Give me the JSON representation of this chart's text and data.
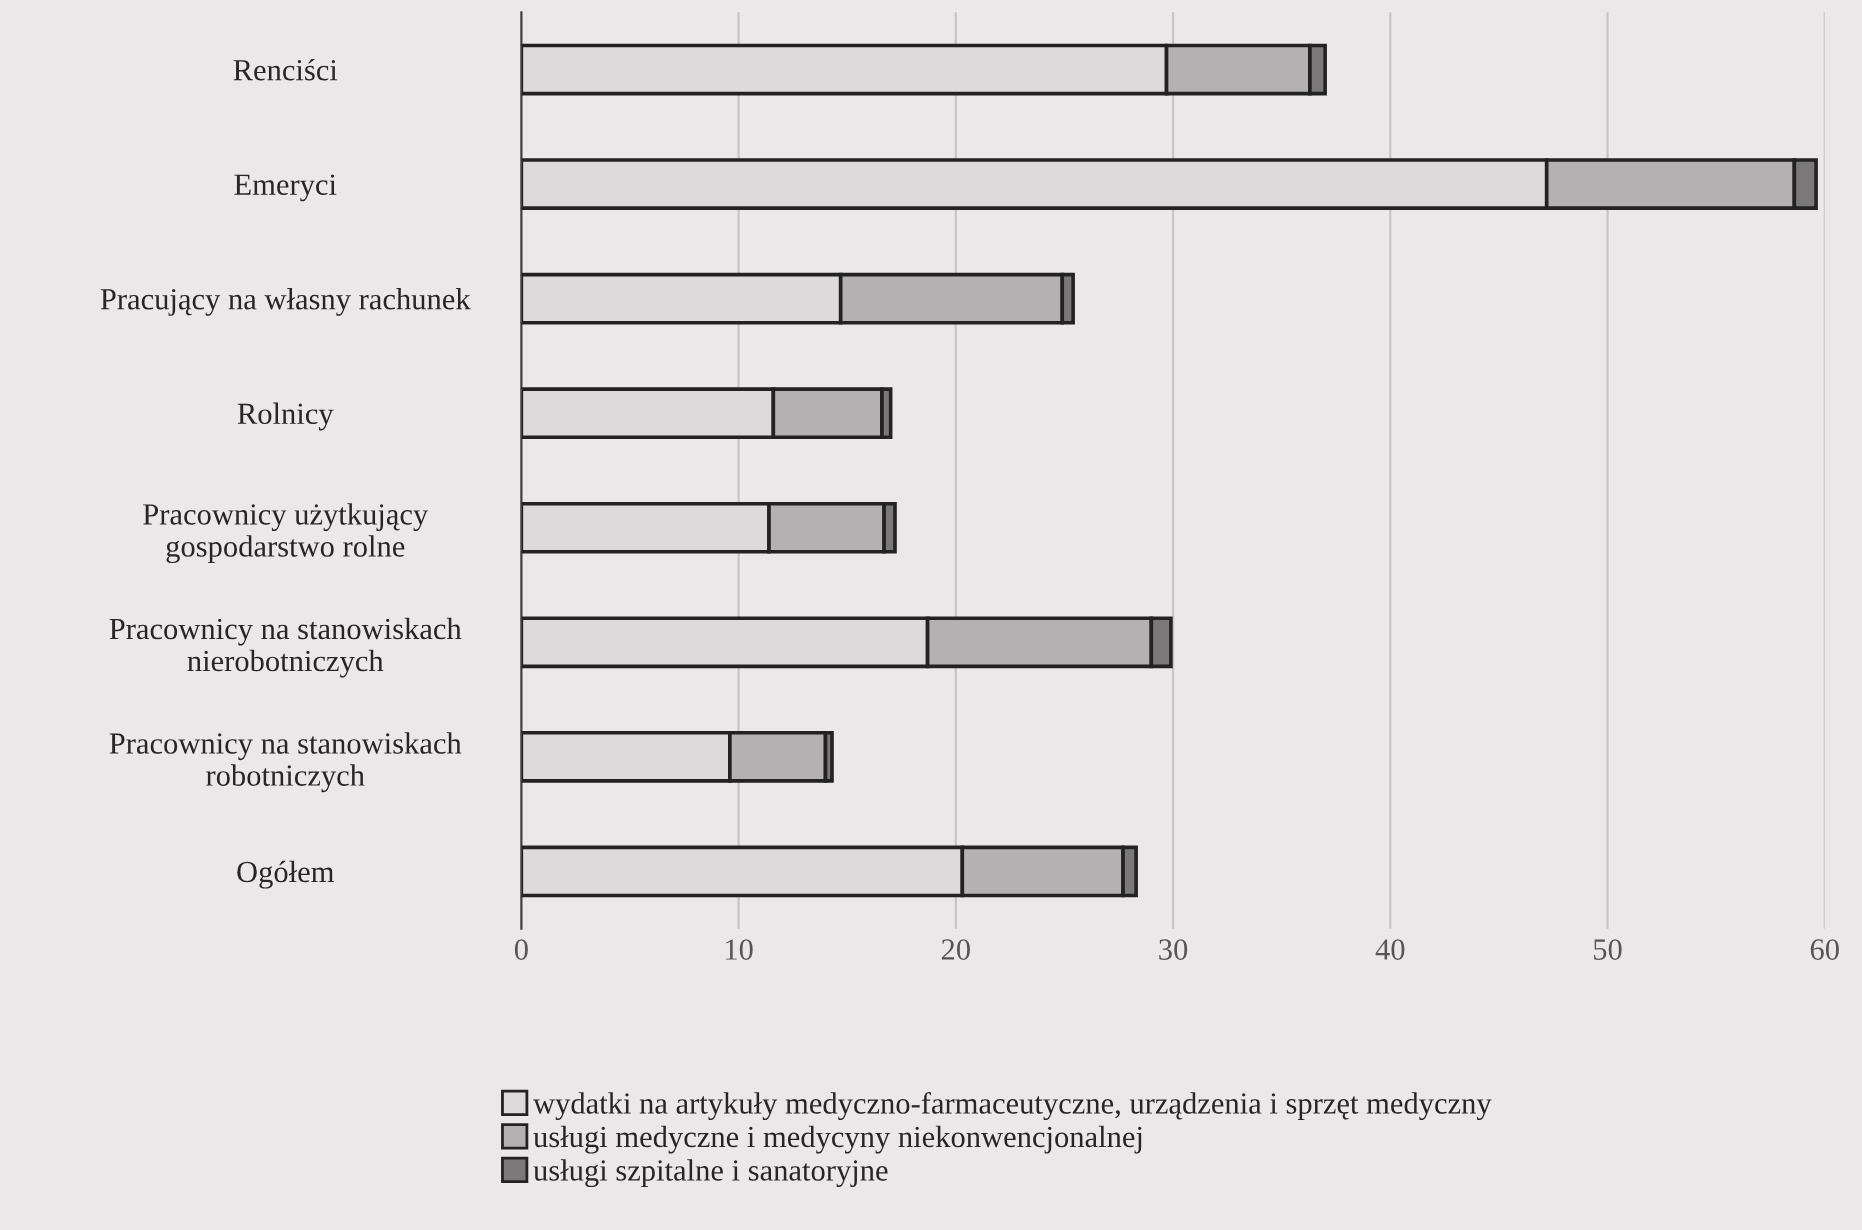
{
  "chart_data": {
    "type": "bar",
    "orientation": "horizontal",
    "stacked": true,
    "categories": [
      "Renciści",
      "Emeryci",
      "Pracujący na własny rachunek",
      "Rolnicy",
      "Pracownicy użytkujący\ngospodarstwo rolne",
      "Pracownicy na stanowiskach\nnierobotniczych",
      "Pracownicy na stanowiskach\nrobotniczych",
      "Ogółem"
    ],
    "series": [
      {
        "name": "wydatki na artykuły medyczno-farmaceutyczne, urządzenia i sprzęt medyczny",
        "color": "#dcdadb",
        "values": [
          29.7,
          47.2,
          14.7,
          11.6,
          11.4,
          18.7,
          9.6,
          20.3
        ]
      },
      {
        "name": "usługi medyczne i medycyny niekonwencjonalnej",
        "color": "#b3b1b2",
        "values": [
          6.6,
          11.4,
          10.2,
          5.0,
          5.3,
          10.3,
          4.4,
          7.4
        ]
      },
      {
        "name": "usługi szpitalne i sanatoryjne",
        "color": "#7a7879",
        "values": [
          0.7,
          1.0,
          0.5,
          0.4,
          0.5,
          0.9,
          0.3,
          0.6
        ]
      }
    ],
    "xlim": [
      0,
      60
    ],
    "xticks": [
      0,
      10,
      20,
      30,
      40,
      50,
      60
    ],
    "grid": "x",
    "legend": "bottom"
  }
}
